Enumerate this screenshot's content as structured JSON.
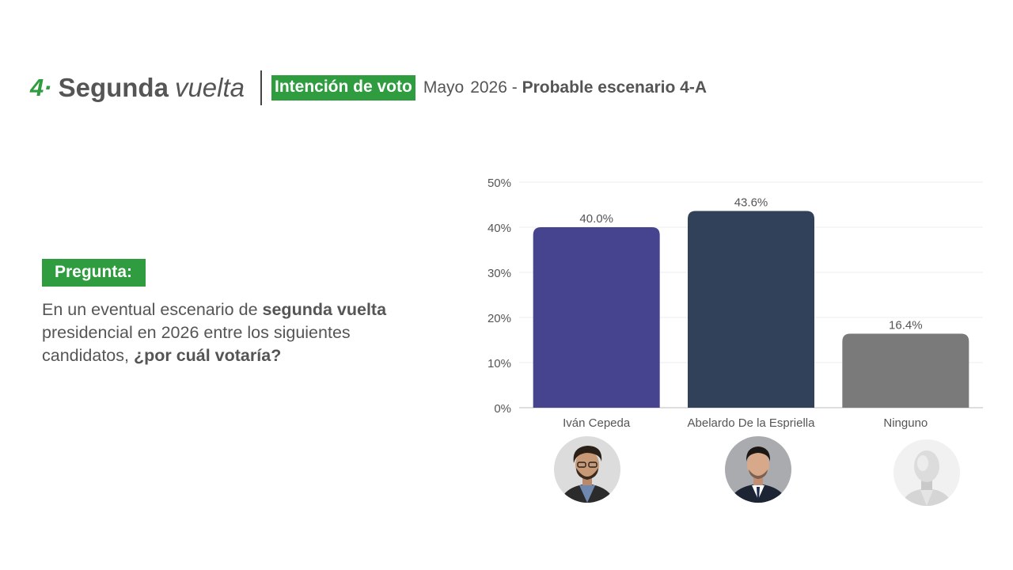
{
  "header": {
    "section_number": "4·",
    "title_bold": "Segunda",
    "title_italic": "vuelta",
    "tag": "Intención de voto",
    "month": "Mayo",
    "year_dash": "2026 -",
    "scenario": "Probable escenario 4-A"
  },
  "question": {
    "label": "Pregunta:",
    "text_part1": "En un eventual escenario de ",
    "text_bold1": "segunda vuelta",
    "text_part2": " presidencial en 2026 entre los siguientes candidatos, ",
    "text_bold2": "¿por cuál votaría?"
  },
  "colors": {
    "accent": "#2e9c3f",
    "bar_1": "#46448f",
    "bar_2": "#32415a",
    "bar_3": "#7a7a7a"
  },
  "chart_data": {
    "type": "bar",
    "categories": [
      "Iván Cepeda",
      "Abelardo De la Espriella",
      "Ninguno"
    ],
    "values": [
      40.0,
      43.6,
      16.4
    ],
    "value_labels": [
      "40.0%",
      "43.6%",
      "16.4%"
    ],
    "colors": [
      "#46448f",
      "#32415a",
      "#7a7a7a"
    ],
    "ylim": [
      0,
      50
    ],
    "yticks": [
      0,
      10,
      20,
      30,
      40,
      50
    ],
    "ytick_labels": [
      "0%",
      "10%",
      "20%",
      "30%",
      "40%",
      "50%"
    ],
    "grid": true
  }
}
